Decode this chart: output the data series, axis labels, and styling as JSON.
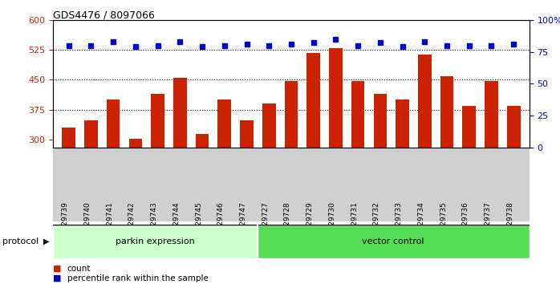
{
  "title": "GDS4476 / 8097066",
  "samples": [
    "GSM729739",
    "GSM729740",
    "GSM729741",
    "GSM729742",
    "GSM729743",
    "GSM729744",
    "GSM729745",
    "GSM729746",
    "GSM729747",
    "GSM729727",
    "GSM729728",
    "GSM729729",
    "GSM729730",
    "GSM729731",
    "GSM729732",
    "GSM729733",
    "GSM729734",
    "GSM729735",
    "GSM729736",
    "GSM729737",
    "GSM729738"
  ],
  "counts": [
    330,
    348,
    400,
    303,
    415,
    455,
    315,
    400,
    348,
    390,
    447,
    517,
    530,
    447,
    415,
    400,
    513,
    458,
    385,
    447,
    385
  ],
  "percentile_ranks": [
    80,
    80,
    83,
    79,
    80,
    83,
    79,
    80,
    81,
    80,
    81,
    82,
    85,
    80,
    82,
    79,
    83,
    80,
    80,
    80,
    81
  ],
  "parkin_count": 9,
  "vector_count": 12,
  "parkin_label": "parkin expression",
  "vector_label": "vector control",
  "protocol_label": "protocol",
  "ylim_left": [
    280,
    600
  ],
  "ylim_right": [
    0,
    100
  ],
  "yticks_left": [
    300,
    375,
    450,
    525,
    600
  ],
  "yticks_right": [
    0,
    25,
    50,
    75,
    100
  ],
  "bar_color": "#cc2200",
  "dot_color": "#0000cc",
  "xtick_bg_color": "#d0d0d0",
  "parkin_bg": "#ccffcc",
  "vector_bg": "#55dd55",
  "legend_count_label": "count",
  "legend_pct_label": "percentile rank within the sample",
  "bar_width": 0.6,
  "figure_bg": "#ffffff"
}
